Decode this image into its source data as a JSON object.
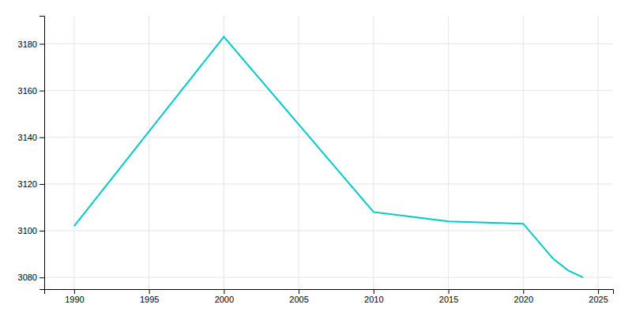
{
  "chart_data": {
    "type": "line",
    "x": [
      1990,
      2000,
      2010,
      2015,
      2020,
      2022,
      2023,
      2024
    ],
    "values": [
      3102,
      3183,
      3108,
      3104,
      3103,
      3088,
      3083,
      3080
    ],
    "color": "#00C8C8",
    "xlim": [
      1988,
      2026
    ],
    "ylim": [
      3075,
      3192
    ],
    "xticks": [
      1990,
      1995,
      2000,
      2005,
      2010,
      2015,
      2020,
      2025
    ],
    "yticks": [
      3080,
      3100,
      3120,
      3140,
      3160,
      3180
    ],
    "grid": true
  }
}
